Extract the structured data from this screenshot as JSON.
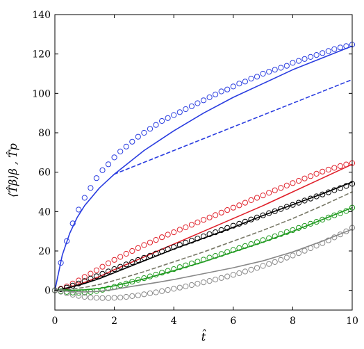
{
  "chart_data": {
    "type": "line",
    "title": "",
    "xlabel": "t̂",
    "ylabel": "⟨T̂β⟩β , T̂p",
    "xlim": [
      0,
      10
    ],
    "ylim": [
      -10,
      140
    ],
    "xticks": [
      0,
      2,
      4,
      6,
      8,
      10
    ],
    "yticks": [
      0,
      20,
      40,
      60,
      80,
      100,
      120,
      140
    ],
    "grid": false,
    "series": [
      {
        "color": "#2a3de0",
        "style": "solid",
        "x": [
          0,
          0.25,
          0.5,
          0.75,
          1,
          1.5,
          2,
          2.5,
          3,
          3.5,
          4,
          5,
          6,
          7,
          8,
          9,
          10
        ],
        "y": [
          0,
          18,
          29,
          37,
          43,
          52,
          59,
          65,
          71,
          76,
          81,
          90,
          98,
          105,
          112,
          118,
          124
        ]
      },
      {
        "color": "#2a3de0",
        "style": "dashed",
        "x": [
          2,
          3,
          4,
          5,
          6,
          7,
          8,
          9,
          10
        ],
        "y": [
          59,
          65,
          71,
          77,
          83,
          89,
          95,
          101,
          107
        ]
      },
      {
        "color": "#2a3de0",
        "style": "circles",
        "x": [
          0,
          0.2,
          0.4,
          0.6,
          0.8,
          1.0,
          1.2,
          1.4,
          1.6,
          1.8,
          2.0,
          2.2,
          2.4,
          2.6,
          2.8,
          3.0,
          3.2,
          3.4,
          3.6,
          3.8,
          4.0,
          4.2,
          4.4,
          4.6,
          4.8,
          5.0,
          5.2,
          5.4,
          5.6,
          5.8,
          6.0,
          6.2,
          6.4,
          6.6,
          6.8,
          7.0,
          7.2,
          7.4,
          7.6,
          7.8,
          8.0,
          8.2,
          8.4,
          8.6,
          8.8,
          9.0,
          9.2,
          9.4,
          9.6,
          9.8,
          10.0
        ],
        "y": [
          0,
          14,
          25,
          34,
          41,
          47,
          52,
          57,
          61,
          64,
          67.5,
          70.5,
          73,
          75.5,
          78,
          80,
          82,
          84,
          86,
          87.5,
          89,
          90.5,
          92,
          93.5,
          95,
          96.5,
          98,
          99.5,
          101,
          102,
          103.5,
          105,
          106,
          107.5,
          108.5,
          110,
          111,
          112,
          113,
          114,
          115.5,
          116.5,
          117.5,
          118.5,
          119.5,
          120.5,
          121.5,
          122.5,
          123.3,
          124,
          124.8
        ]
      },
      {
        "color": "#e0202a",
        "style": "solid",
        "x": [
          0,
          0.5,
          1,
          1.5,
          2,
          3,
          4,
          5,
          6,
          7,
          8,
          9,
          10
        ],
        "y": [
          0,
          1.5,
          4,
          7,
          10.5,
          17,
          23.5,
          30,
          36.5,
          43,
          50,
          57,
          64
        ]
      },
      {
        "color": "#e0202a",
        "style": "circles",
        "x": [
          0,
          0.2,
          0.4,
          0.6,
          0.8,
          1.0,
          1.2,
          1.4,
          1.6,
          1.8,
          2.0,
          2.2,
          2.4,
          2.6,
          2.8,
          3.0,
          3.2,
          3.4,
          3.6,
          3.8,
          4.0,
          4.2,
          4.4,
          4.6,
          4.8,
          5.0,
          5.2,
          5.4,
          5.6,
          5.8,
          6.0,
          6.2,
          6.4,
          6.6,
          6.8,
          7.0,
          7.2,
          7.4,
          7.6,
          7.8,
          8.0,
          8.2,
          8.4,
          8.6,
          8.8,
          9.0,
          9.2,
          9.4,
          9.6,
          9.8,
          10.0
        ],
        "y": [
          0,
          0.8,
          2,
          3.5,
          5,
          6.8,
          8.5,
          10.2,
          12,
          13.8,
          15.5,
          17,
          18.6,
          20,
          21.5,
          23,
          24.3,
          25.6,
          27,
          28.3,
          29.5,
          30.8,
          32,
          33.3,
          34.5,
          35.8,
          37,
          38.2,
          39.5,
          40.8,
          42,
          43.2,
          44.5,
          45.8,
          47,
          48.2,
          49.5,
          50.8,
          52,
          53.2,
          54.5,
          55.6,
          56.8,
          58,
          59.2,
          60.3,
          61.3,
          62.2,
          63.1,
          63.9,
          64.6
        ]
      },
      {
        "color": "#000000",
        "style": "solid",
        "x": [
          0,
          0.5,
          1,
          1.5,
          2,
          3,
          4,
          5,
          6,
          7,
          8,
          9,
          10
        ],
        "y": [
          0,
          1.5,
          3.5,
          6,
          9,
          15,
          21,
          26.5,
          32,
          38,
          43.5,
          49,
          55
        ]
      },
      {
        "color": "#000000",
        "style": "circles",
        "x": [
          0,
          0.2,
          0.4,
          0.6,
          0.8,
          1.0,
          1.2,
          1.4,
          1.6,
          1.8,
          2.0,
          2.2,
          2.4,
          2.6,
          2.8,
          3.0,
          3.2,
          3.4,
          3.6,
          3.8,
          4.0,
          4.2,
          4.4,
          4.6,
          4.8,
          5.0,
          5.2,
          5.4,
          5.6,
          5.8,
          6.0,
          6.2,
          6.4,
          6.6,
          6.8,
          7.0,
          7.2,
          7.4,
          7.6,
          7.8,
          8.0,
          8.2,
          8.4,
          8.6,
          8.8,
          9.0,
          9.2,
          9.4,
          9.6,
          9.8,
          10.0
        ],
        "y": [
          0,
          0.6,
          1.4,
          2.4,
          3.5,
          4.7,
          6,
          7.2,
          8.4,
          9.6,
          10.8,
          12,
          13.2,
          14.3,
          15.4,
          16.5,
          17.6,
          18.7,
          19.8,
          20.9,
          22,
          23.1,
          24.2,
          25.2,
          26.3,
          27.4,
          28.5,
          29.5,
          30.6,
          31.7,
          32.8,
          33.8,
          34.9,
          36,
          37,
          38.1,
          39.2,
          40.2,
          41.3,
          42.4,
          43.4,
          44.5,
          45.6,
          46.6,
          47.7,
          48.7,
          49.8,
          50.9,
          51.9,
          53,
          54.1
        ]
      },
      {
        "color": "#777766",
        "style": "dashed",
        "x": [
          0,
          0.5,
          1,
          1.5,
          2,
          3,
          4,
          5,
          6,
          7,
          8,
          9,
          10
        ],
        "y": [
          0,
          0.5,
          1.5,
          3,
          5,
          9.5,
          14.5,
          19.5,
          25,
          30.5,
          36.5,
          43,
          50
        ]
      },
      {
        "color": "#1f9a1f",
        "style": "solid",
        "x": [
          0,
          0.5,
          1,
          1.5,
          2,
          2.5,
          3,
          4,
          5,
          6,
          7,
          8,
          9,
          10
        ],
        "y": [
          0,
          0,
          0.3,
          1,
          2.3,
          4,
          5.8,
          10,
          14.5,
          19.5,
          24.5,
          30,
          36,
          42
        ]
      },
      {
        "color": "#1f9a1f",
        "style": "circles",
        "x": [
          0,
          0.2,
          0.4,
          0.6,
          0.8,
          1.0,
          1.2,
          1.4,
          1.6,
          1.8,
          2.0,
          2.2,
          2.4,
          2.6,
          2.8,
          3.0,
          3.2,
          3.4,
          3.6,
          3.8,
          4.0,
          4.2,
          4.4,
          4.6,
          4.8,
          5.0,
          5.2,
          5.4,
          5.6,
          5.8,
          6.0,
          6.2,
          6.4,
          6.6,
          6.8,
          7.0,
          7.2,
          7.4,
          7.6,
          7.8,
          8.0,
          8.2,
          8.4,
          8.6,
          8.8,
          9.0,
          9.2,
          9.4,
          9.6,
          9.8,
          10.0
        ],
        "y": [
          0,
          -0.4,
          -0.8,
          -1.1,
          -1.2,
          -1.1,
          -0.8,
          -0.3,
          0.3,
          1,
          1.8,
          2.6,
          3.5,
          4.4,
          5.3,
          6.2,
          7.1,
          8,
          9,
          9.9,
          10.8,
          11.8,
          12.7,
          13.7,
          14.6,
          15.6,
          16.6,
          17.5,
          18.5,
          19.5,
          20.5,
          21.5,
          22.5,
          23.5,
          24.5,
          25.5,
          26.5,
          27.5,
          28.6,
          29.6,
          30.6,
          31.7,
          32.7,
          33.8,
          34.8,
          35.9,
          37,
          38.1,
          39.2,
          40.3,
          42
        ]
      },
      {
        "color": "#888888",
        "style": "solid",
        "x": [
          0,
          0.5,
          1,
          1.5,
          2,
          2.5,
          3,
          3.5,
          4,
          5,
          6,
          7,
          8,
          9,
          10
        ],
        "y": [
          0,
          -0.5,
          -0.8,
          -0.5,
          0.5,
          1.8,
          3,
          4.2,
          5.5,
          8.5,
          11.5,
          15,
          19.5,
          25,
          31
        ]
      },
      {
        "color": "#888888",
        "style": "circles",
        "x": [
          0,
          0.2,
          0.4,
          0.6,
          0.8,
          1.0,
          1.2,
          1.4,
          1.6,
          1.8,
          2.0,
          2.2,
          2.4,
          2.6,
          2.8,
          3.0,
          3.2,
          3.4,
          3.6,
          3.8,
          4.0,
          4.2,
          4.4,
          4.6,
          4.8,
          5.0,
          5.2,
          5.4,
          5.6,
          5.8,
          6.0,
          6.2,
          6.4,
          6.6,
          6.8,
          7.0,
          7.2,
          7.4,
          7.6,
          7.8,
          8.0,
          8.2,
          8.4,
          8.6,
          8.8,
          9.0,
          9.2,
          9.4,
          9.6,
          9.8,
          10.0
        ],
        "y": [
          0,
          -0.7,
          -1.5,
          -2.2,
          -2.8,
          -3.3,
          -3.6,
          -3.8,
          -3.9,
          -3.9,
          -3.8,
          -3.6,
          -3.3,
          -2.9,
          -2.5,
          -2,
          -1.5,
          -1,
          -0.4,
          0.2,
          0.8,
          1.4,
          2,
          2.7,
          3.4,
          4.1,
          4.8,
          5.5,
          6.3,
          7.1,
          7.9,
          8.7,
          9.6,
          10.5,
          11.4,
          12.4,
          13.4,
          14.4,
          15.5,
          16.6,
          17.7,
          18.9,
          20.1,
          21.4,
          22.7,
          24,
          25.4,
          26.9,
          28.4,
          30,
          31.8
        ]
      }
    ]
  }
}
